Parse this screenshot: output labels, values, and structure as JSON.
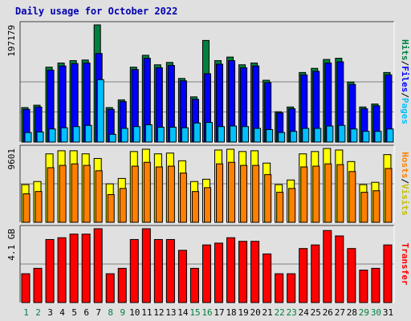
{
  "title": "Daily usage for October 2022",
  "colors": {
    "background": "#e0e0e0",
    "plot_bg": "#e0e0e0",
    "grid": "#808080",
    "frame_dark": "#404040",
    "frame_light": "#ffffff",
    "hits": "#008040",
    "files": "#0000ff",
    "pages": "#00c0ff",
    "visits": "#ffff00",
    "sites": "#ff8000",
    "kbytes": "#ff0000",
    "title": "#0000b0",
    "weekday_label": "#000000",
    "weekend_label": "#008040"
  },
  "chart_data": [
    {
      "type": "bar",
      "panel": "hits-files-pages",
      "ylabel_parts": [
        {
          "text": "Hits",
          "color": "#008040"
        },
        {
          "text": "/",
          "color": "#000000"
        },
        {
          "text": "Files",
          "color": "#0000ff"
        },
        {
          "text": "/",
          "color": "#000000"
        },
        {
          "text": "Pages",
          "color": "#00c0ff"
        }
      ],
      "max_label": "197179",
      "ylim": [
        0,
        197179
      ],
      "grid": true,
      "categories": [
        "1",
        "2",
        "3",
        "4",
        "5",
        "6",
        "7",
        "8",
        "9",
        "10",
        "11",
        "12",
        "13",
        "14",
        "15",
        "16",
        "17",
        "18",
        "19",
        "20",
        "21",
        "22",
        "23",
        "24",
        "25",
        "26",
        "27",
        "28",
        "29",
        "30",
        "31"
      ],
      "series": [
        {
          "name": "Hits",
          "color": "#008040",
          "values": [
            58000,
            62000,
            126000,
            133000,
            137000,
            138000,
            197179,
            58000,
            71000,
            126000,
            146000,
            130000,
            134000,
            107000,
            76000,
            171000,
            137000,
            143000,
            130000,
            133000,
            104000,
            51000,
            59000,
            117000,
            124000,
            139000,
            141000,
            101000,
            59000,
            64000,
            117000
          ]
        },
        {
          "name": "Files",
          "color": "#0000ff",
          "values": [
            55000,
            59000,
            121000,
            128000,
            132000,
            133000,
            149000,
            55000,
            68000,
            122000,
            141000,
            125000,
            129000,
            103000,
            72000,
            115000,
            131000,
            137000,
            125000,
            128000,
            100000,
            49000,
            56000,
            113000,
            119000,
            133000,
            135000,
            97000,
            56000,
            61000,
            113000
          ]
        },
        {
          "name": "Pages",
          "color": "#00c0ff",
          "values": [
            16000,
            17000,
            22000,
            24000,
            26000,
            28000,
            105000,
            13000,
            23000,
            26000,
            29000,
            25000,
            25000,
            24000,
            32000,
            33000,
            26000,
            27000,
            26000,
            23000,
            21000,
            16000,
            18000,
            23000,
            23000,
            27000,
            28000,
            22000,
            18000,
            18000,
            22000
          ]
        }
      ]
    },
    {
      "type": "bar",
      "panel": "visits-sites",
      "ylabel_parts": [
        {
          "text": "Hosts",
          "color": "#ff8000"
        },
        {
          "text": "/",
          "color": "#000000"
        },
        {
          "text": "Visits",
          "color": "#c0c000"
        }
      ],
      "max_label": "9601",
      "ylim": [
        0,
        9601
      ],
      "grid": true,
      "categories": [
        "1",
        "2",
        "3",
        "4",
        "5",
        "6",
        "7",
        "8",
        "9",
        "10",
        "11",
        "12",
        "13",
        "14",
        "15",
        "16",
        "17",
        "18",
        "19",
        "20",
        "21",
        "22",
        "23",
        "24",
        "25",
        "26",
        "27",
        "28",
        "29",
        "30",
        "31"
      ],
      "series": [
        {
          "name": "Visits",
          "color": "#ffff00",
          "values": [
            4900,
            5300,
            8900,
            9300,
            9300,
            8900,
            8300,
            5000,
            5700,
            9200,
            9500,
            8900,
            9000,
            8000,
            5300,
            5600,
            9400,
            9500,
            9200,
            9300,
            7700,
            4900,
            5500,
            8900,
            9200,
            9600,
            9400,
            7900,
            4900,
            5200,
            8800
          ]
        },
        {
          "name": "Sites",
          "color": "#ff8000",
          "values": [
            3700,
            4000,
            7100,
            7400,
            7600,
            7400,
            6700,
            3600,
            4400,
            7300,
            7800,
            7200,
            7300,
            6400,
            4000,
            4500,
            7600,
            7800,
            7400,
            7400,
            6200,
            3900,
            4400,
            7200,
            7300,
            7600,
            7500,
            6600,
            3900,
            4100,
            7000
          ]
        }
      ]
    },
    {
      "type": "bar",
      "panel": "kbytes",
      "ylabel_parts": [
        {
          "text": "Transfer",
          "color": "#ff0000"
        }
      ],
      "max_label": "4.1 GB",
      "ylim": [
        0,
        4.1
      ],
      "grid": true,
      "categories": [
        "1",
        "2",
        "3",
        "4",
        "5",
        "6",
        "7",
        "8",
        "9",
        "10",
        "11",
        "12",
        "13",
        "14",
        "15",
        "16",
        "17",
        "18",
        "19",
        "20",
        "21",
        "22",
        "23",
        "24",
        "25",
        "26",
        "27",
        "28",
        "29",
        "30",
        "31"
      ],
      "series": [
        {
          "name": "Transfer",
          "color": "#ff0000",
          "values": [
            1.6,
            1.9,
            3.5,
            3.6,
            3.8,
            3.8,
            4.1,
            1.6,
            1.9,
            3.5,
            4.1,
            3.5,
            3.5,
            2.9,
            1.9,
            3.2,
            3.3,
            3.6,
            3.4,
            3.4,
            2.7,
            1.6,
            1.6,
            3.0,
            3.2,
            4.0,
            3.7,
            3.0,
            1.8,
            1.9,
            3.2
          ]
        }
      ]
    }
  ],
  "weekend_days": [
    "1",
    "2",
    "8",
    "9",
    "15",
    "16",
    "22",
    "23",
    "29",
    "30"
  ]
}
